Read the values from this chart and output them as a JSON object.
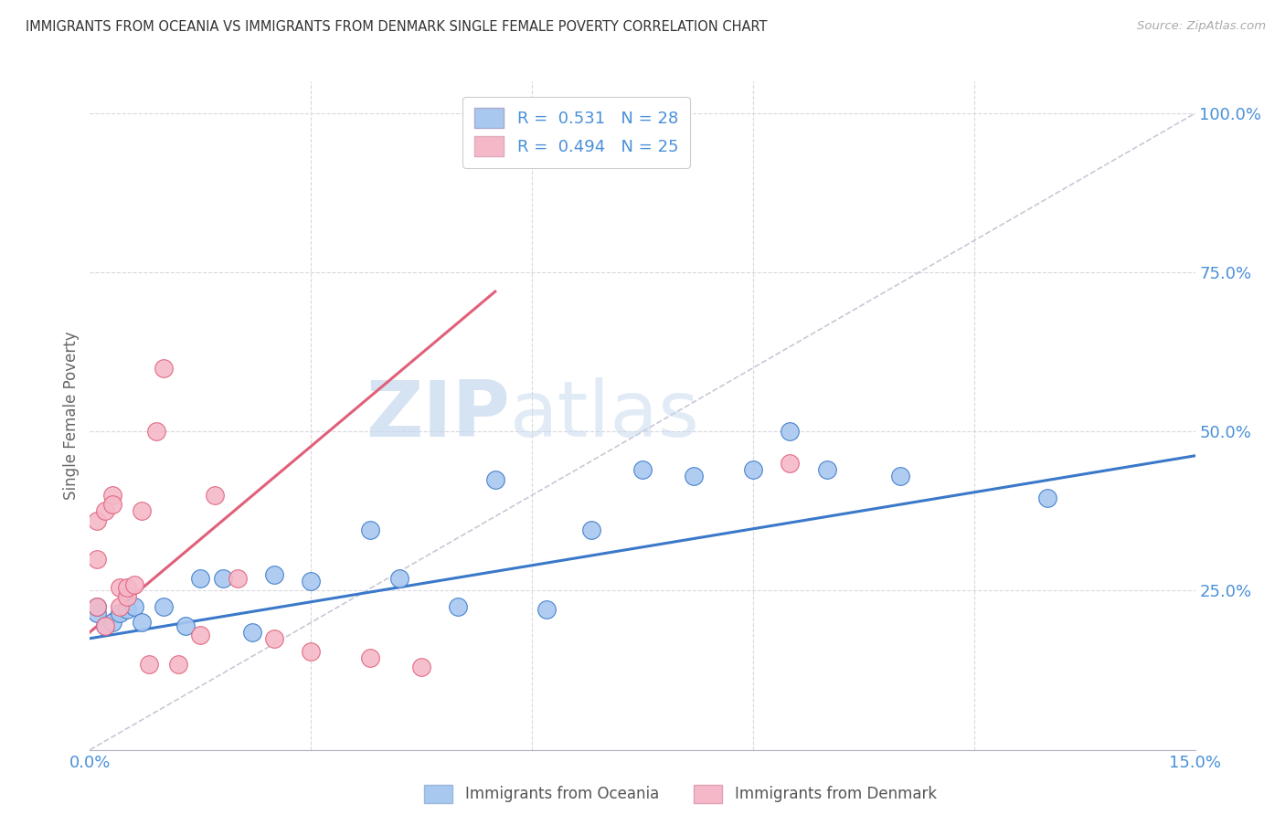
{
  "title": "IMMIGRANTS FROM OCEANIA VS IMMIGRANTS FROM DENMARK SINGLE FEMALE POVERTY CORRELATION CHART",
  "source": "Source: ZipAtlas.com",
  "ylabel": "Single Female Poverty",
  "ylabel_right_ticks": [
    "100.0%",
    "75.0%",
    "50.0%",
    "25.0%"
  ],
  "ylabel_right_vals": [
    1.0,
    0.75,
    0.5,
    0.25
  ],
  "xmin": 0.0,
  "xmax": 0.15,
  "ymin": 0.0,
  "ymax": 1.05,
  "color_oceania": "#a8c8f0",
  "color_denmark": "#f5b8c8",
  "color_line_oceania": "#3a78c9",
  "color_line_denmark": "#e0607a",
  "color_diagonal": "#c8c8d8",
  "watermark_zip": "ZIP",
  "watermark_atlas": "atlas",
  "oceania_x": [
    0.001,
    0.001,
    0.002,
    0.003,
    0.004,
    0.005,
    0.006,
    0.007,
    0.01,
    0.013,
    0.015,
    0.018,
    0.022,
    0.025,
    0.03,
    0.038,
    0.042,
    0.05,
    0.055,
    0.062,
    0.068,
    0.075,
    0.082,
    0.09,
    0.095,
    0.1,
    0.11,
    0.13
  ],
  "oceania_y": [
    0.215,
    0.225,
    0.195,
    0.2,
    0.215,
    0.22,
    0.225,
    0.2,
    0.225,
    0.195,
    0.27,
    0.27,
    0.185,
    0.275,
    0.265,
    0.345,
    0.27,
    0.225,
    0.425,
    0.22,
    0.345,
    0.44,
    0.43,
    0.44,
    0.5,
    0.44,
    0.43,
    0.395
  ],
  "denmark_x": [
    0.001,
    0.001,
    0.001,
    0.002,
    0.002,
    0.003,
    0.003,
    0.004,
    0.004,
    0.005,
    0.005,
    0.006,
    0.007,
    0.008,
    0.009,
    0.01,
    0.012,
    0.015,
    0.017,
    0.02,
    0.025,
    0.03,
    0.038,
    0.045,
    0.095
  ],
  "denmark_y": [
    0.225,
    0.3,
    0.36,
    0.375,
    0.195,
    0.4,
    0.385,
    0.255,
    0.225,
    0.24,
    0.255,
    0.26,
    0.375,
    0.135,
    0.5,
    0.6,
    0.135,
    0.18,
    0.4,
    0.27,
    0.175,
    0.155,
    0.145,
    0.13,
    0.45
  ],
  "oceania_line_x": [
    0.0,
    0.15
  ],
  "oceania_line_y": [
    0.175,
    0.462
  ],
  "denmark_line_x": [
    0.0,
    0.055
  ],
  "denmark_line_y": [
    0.185,
    0.72
  ],
  "diag_line_x": [
    0.0,
    0.15
  ],
  "diag_line_y": [
    0.0,
    1.0
  ],
  "x_tick_positions": [
    0.0,
    0.03,
    0.06,
    0.09,
    0.12,
    0.15
  ]
}
